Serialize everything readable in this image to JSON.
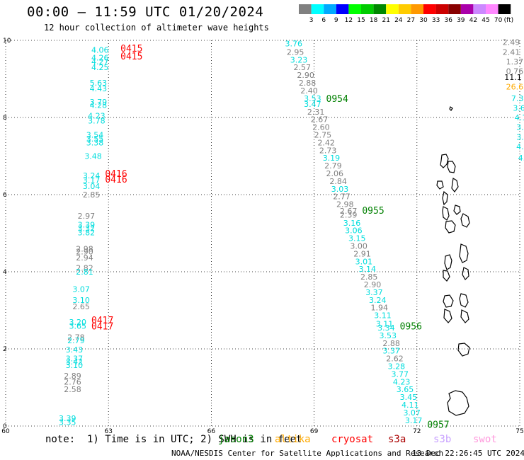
{
  "header": {
    "title": "00:00 – 11:59 UTC 01/20/2024",
    "subtitle": "12 hour collection of altimeter wave heights"
  },
  "colorbar": {
    "unit": "(ft)",
    "colors": [
      "#808080",
      "#00ffff",
      "#00aaff",
      "#0000ff",
      "#00ff00",
      "#00cc00",
      "#008800",
      "#ffff00",
      "#ffcc00",
      "#ff9900",
      "#ff0000",
      "#cc0000",
      "#880000",
      "#aa00aa",
      "#cc88ff",
      "#ff88ff",
      "#000000"
    ],
    "labels": [
      "3",
      "6",
      "9",
      "12",
      "15",
      "18",
      "21",
      "24",
      "27",
      "30",
      "33",
      "36",
      "39",
      "42",
      "45",
      "70"
    ]
  },
  "axes": {
    "x_ticks": [
      "60",
      "63",
      "66",
      "69",
      "72",
      "75"
    ],
    "y_ticks": [
      "0",
      "2",
      "4",
      "6",
      "8",
      "10"
    ],
    "xlim": [
      60,
      75
    ],
    "ylim": [
      0,
      10
    ]
  },
  "track_colors": {
    "jason3": "#008000",
    "saral": "#ff0000",
    "gray": "#808080",
    "cyan": "#00dddd",
    "orange": "#ffaa00",
    "black": "#000000"
  },
  "time_labels": [
    {
      "text": "0415",
      "lon": 63.35,
      "lat": 9.8,
      "color": "#ff0000"
    },
    {
      "text": "0415",
      "lon": 63.35,
      "lat": 9.6,
      "color": "#ff0000"
    },
    {
      "text": "0416",
      "lon": 62.9,
      "lat": 6.55,
      "color": "#ff0000"
    },
    {
      "text": "0416",
      "lon": 62.9,
      "lat": 6.4,
      "color": "#ff0000"
    },
    {
      "text": "0417",
      "lon": 62.5,
      "lat": 2.75,
      "color": "#ff0000"
    },
    {
      "text": "0417",
      "lon": 62.5,
      "lat": 2.6,
      "color": "#ff0000"
    },
    {
      "text": "0954",
      "lon": 69.35,
      "lat": 8.5,
      "color": "#008000"
    },
    {
      "text": "0955",
      "lon": 70.4,
      "lat": 5.6,
      "color": "#008000"
    },
    {
      "text": "0956",
      "lon": 71.5,
      "lat": 2.6,
      "color": "#008000"
    },
    {
      "text": "0957",
      "lon": 72.3,
      "lat": 0.05,
      "color": "#008000"
    }
  ],
  "observations": [
    {
      "text": "4.06",
      "lon": 62.5,
      "lat": 9.75,
      "color": "#00dddd"
    },
    {
      "text": "4.26",
      "lon": 62.5,
      "lat": 9.55,
      "color": "#00dddd"
    },
    {
      "text": "4.27",
      "lon": 62.5,
      "lat": 9.45,
      "color": "#00dddd"
    },
    {
      "text": "4.25",
      "lon": 62.5,
      "lat": 9.3,
      "color": "#00dddd"
    },
    {
      "text": "5.63",
      "lon": 62.45,
      "lat": 8.9,
      "color": "#00dddd"
    },
    {
      "text": "4.43",
      "lon": 62.45,
      "lat": 8.75,
      "color": "#00dddd"
    },
    {
      "text": "3.79",
      "lon": 62.45,
      "lat": 8.4,
      "color": "#00dddd"
    },
    {
      "text": "4.28",
      "lon": 62.45,
      "lat": 8.32,
      "color": "#00dddd"
    },
    {
      "text": "4.23",
      "lon": 62.4,
      "lat": 8.05,
      "color": "#00dddd"
    },
    {
      "text": "3.78",
      "lon": 62.4,
      "lat": 7.92,
      "color": "#00dddd"
    },
    {
      "text": "3.54",
      "lon": 62.35,
      "lat": 7.55,
      "color": "#00dddd"
    },
    {
      "text": "3.55",
      "lon": 62.35,
      "lat": 7.45,
      "color": "#00dddd"
    },
    {
      "text": "3.38",
      "lon": 62.35,
      "lat": 7.35,
      "color": "#00dddd"
    },
    {
      "text": "3.48",
      "lon": 62.3,
      "lat": 7.0,
      "color": "#00dddd"
    },
    {
      "text": "3.24",
      "lon": 62.25,
      "lat": 6.5,
      "color": "#00dddd"
    },
    {
      "text": "3.17",
      "lon": 62.25,
      "lat": 6.38,
      "color": "#00dddd"
    },
    {
      "text": "3.04",
      "lon": 62.25,
      "lat": 6.22,
      "color": "#00dddd"
    },
    {
      "text": "2.85",
      "lon": 62.25,
      "lat": 6.0,
      "color": "#808080"
    },
    {
      "text": "2.97",
      "lon": 62.1,
      "lat": 5.45,
      "color": "#808080"
    },
    {
      "text": "3.39",
      "lon": 62.1,
      "lat": 5.22,
      "color": "#00dddd"
    },
    {
      "text": "3.32",
      "lon": 62.1,
      "lat": 5.13,
      "color": "#00dddd"
    },
    {
      "text": "3.82",
      "lon": 62.1,
      "lat": 5.02,
      "color": "#00dddd"
    },
    {
      "text": "2.98",
      "lon": 62.05,
      "lat": 4.6,
      "color": "#808080"
    },
    {
      "text": "2.90",
      "lon": 62.05,
      "lat": 4.52,
      "color": "#808080"
    },
    {
      "text": "2.94",
      "lon": 62.05,
      "lat": 4.37,
      "color": "#808080"
    },
    {
      "text": "2.82",
      "lon": 62.05,
      "lat": 4.1,
      "color": "#808080"
    },
    {
      "text": "2.81",
      "lon": 62.05,
      "lat": 4.0,
      "color": "#00dddd"
    },
    {
      "text": "3.07",
      "lon": 61.95,
      "lat": 3.55,
      "color": "#00dddd"
    },
    {
      "text": "3.10",
      "lon": 61.95,
      "lat": 3.27,
      "color": "#00dddd"
    },
    {
      "text": "2.65",
      "lon": 61.95,
      "lat": 3.1,
      "color": "#808080"
    },
    {
      "text": "3.20",
      "lon": 61.85,
      "lat": 2.7,
      "color": "#00dddd"
    },
    {
      "text": "3.65",
      "lon": 61.85,
      "lat": 2.6,
      "color": "#00dddd"
    },
    {
      "text": "2.78",
      "lon": 61.8,
      "lat": 2.3,
      "color": "#808080"
    },
    {
      "text": "2.79",
      "lon": 61.8,
      "lat": 2.22,
      "color": "#00dddd"
    },
    {
      "text": "3.43",
      "lon": 61.75,
      "lat": 1.98,
      "color": "#00dddd"
    },
    {
      "text": "3.37",
      "lon": 61.75,
      "lat": 1.75,
      "color": "#00dddd"
    },
    {
      "text": "3.42",
      "lon": 61.75,
      "lat": 1.67,
      "color": "#00dddd"
    },
    {
      "text": "3.10",
      "lon": 61.75,
      "lat": 1.58,
      "color": "#00dddd"
    },
    {
      "text": "2.89",
      "lon": 61.7,
      "lat": 1.3,
      "color": "#808080"
    },
    {
      "text": "2.76",
      "lon": 61.7,
      "lat": 1.15,
      "color": "#808080"
    },
    {
      "text": "2.58",
      "lon": 61.7,
      "lat": 0.95,
      "color": "#808080"
    },
    {
      "text": "3.39",
      "lon": 61.55,
      "lat": 0.2,
      "color": "#00dddd"
    },
    {
      "text": "3.35",
      "lon": 61.55,
      "lat": 0.1,
      "color": "#00dddd"
    },
    {
      "text": "3.76",
      "lon": 68.15,
      "lat": 9.92,
      "color": "#00dddd"
    },
    {
      "text": "2.95",
      "lon": 68.2,
      "lat": 9.7,
      "color": "#808080"
    },
    {
      "text": "3.23",
      "lon": 68.3,
      "lat": 9.5,
      "color": "#00dddd"
    },
    {
      "text": "2.57",
      "lon": 68.4,
      "lat": 9.3,
      "color": "#808080"
    },
    {
      "text": "2.90",
      "lon": 68.5,
      "lat": 9.1,
      "color": "#808080"
    },
    {
      "text": "2.88",
      "lon": 68.55,
      "lat": 8.9,
      "color": "#808080"
    },
    {
      "text": "2.40",
      "lon": 68.6,
      "lat": 8.7,
      "color": "#808080"
    },
    {
      "text": "3.53",
      "lon": 68.7,
      "lat": 8.5,
      "color": "#00dddd"
    },
    {
      "text": "3.47",
      "lon": 68.7,
      "lat": 8.35,
      "color": "#00dddd"
    },
    {
      "text": "2.31",
      "lon": 68.8,
      "lat": 8.15,
      "color": "#808080"
    },
    {
      "text": "2.67",
      "lon": 68.9,
      "lat": 7.95,
      "color": "#808080"
    },
    {
      "text": "2.60",
      "lon": 68.95,
      "lat": 7.75,
      "color": "#808080"
    },
    {
      "text": "2.75",
      "lon": 69.0,
      "lat": 7.55,
      "color": "#808080"
    },
    {
      "text": "2.42",
      "lon": 69.1,
      "lat": 7.35,
      "color": "#808080"
    },
    {
      "text": "2.73",
      "lon": 69.15,
      "lat": 7.15,
      "color": "#808080"
    },
    {
      "text": "3.19",
      "lon": 69.25,
      "lat": 6.95,
      "color": "#00dddd"
    },
    {
      "text": "2.79",
      "lon": 69.3,
      "lat": 6.75,
      "color": "#808080"
    },
    {
      "text": "2.06",
      "lon": 69.35,
      "lat": 6.55,
      "color": "#808080"
    },
    {
      "text": "2.84",
      "lon": 69.45,
      "lat": 6.35,
      "color": "#808080"
    },
    {
      "text": "3.03",
      "lon": 69.5,
      "lat": 6.15,
      "color": "#00dddd"
    },
    {
      "text": "2.77",
      "lon": 69.55,
      "lat": 5.95,
      "color": "#808080"
    },
    {
      "text": "2.98",
      "lon": 69.65,
      "lat": 5.75,
      "color": "#808080"
    },
    {
      "text": "2.67",
      "lon": 69.75,
      "lat": 5.58,
      "color": "#808080"
    },
    {
      "text": "2.39",
      "lon": 69.75,
      "lat": 5.48,
      "color": "#808080"
    },
    {
      "text": "3.16",
      "lon": 69.85,
      "lat": 5.27,
      "color": "#00dddd"
    },
    {
      "text": "3.06",
      "lon": 69.9,
      "lat": 5.07,
      "color": "#00dddd"
    },
    {
      "text": "3.15",
      "lon": 70.0,
      "lat": 4.87,
      "color": "#00dddd"
    },
    {
      "text": "3.00",
      "lon": 70.05,
      "lat": 4.67,
      "color": "#808080"
    },
    {
      "text": "2.91",
      "lon": 70.15,
      "lat": 4.47,
      "color": "#808080"
    },
    {
      "text": "3.01",
      "lon": 70.2,
      "lat": 4.27,
      "color": "#00dddd"
    },
    {
      "text": "3.14",
      "lon": 70.3,
      "lat": 4.07,
      "color": "#00dddd"
    },
    {
      "text": "2.85",
      "lon": 70.35,
      "lat": 3.87,
      "color": "#808080"
    },
    {
      "text": "2.90",
      "lon": 70.45,
      "lat": 3.67,
      "color": "#808080"
    },
    {
      "text": "3.37",
      "lon": 70.5,
      "lat": 3.47,
      "color": "#00dddd"
    },
    {
      "text": "3.24",
      "lon": 70.6,
      "lat": 3.27,
      "color": "#00dddd"
    },
    {
      "text": "1.94",
      "lon": 70.65,
      "lat": 3.07,
      "color": "#808080"
    },
    {
      "text": "3.11",
      "lon": 70.75,
      "lat": 2.87,
      "color": "#00dddd"
    },
    {
      "text": "3.11",
      "lon": 70.8,
      "lat": 2.65,
      "color": "#00dddd"
    },
    {
      "text": "3.34",
      "lon": 70.85,
      "lat": 2.55,
      "color": "#00dddd"
    },
    {
      "text": "3.53",
      "lon": 70.9,
      "lat": 2.35,
      "color": "#00dddd"
    },
    {
      "text": "2.88",
      "lon": 71.0,
      "lat": 2.15,
      "color": "#808080"
    },
    {
      "text": "3.37",
      "lon": 71.0,
      "lat": 1.95,
      "color": "#00dddd"
    },
    {
      "text": "2.62",
      "lon": 71.1,
      "lat": 1.75,
      "color": "#808080"
    },
    {
      "text": "3.28",
      "lon": 71.15,
      "lat": 1.55,
      "color": "#00dddd"
    },
    {
      "text": "3.77",
      "lon": 71.25,
      "lat": 1.35,
      "color": "#00dddd"
    },
    {
      "text": "4.23",
      "lon": 71.3,
      "lat": 1.15,
      "color": "#00dddd"
    },
    {
      "text": "3.65",
      "lon": 71.4,
      "lat": 0.95,
      "color": "#00dddd"
    },
    {
      "text": "3.45",
      "lon": 71.5,
      "lat": 0.75,
      "color": "#00dddd"
    },
    {
      "text": "4.11",
      "lon": 71.55,
      "lat": 0.55,
      "color": "#00dddd"
    },
    {
      "text": "3.07",
      "lon": 71.6,
      "lat": 0.35,
      "color": "#00dddd"
    },
    {
      "text": "3.17",
      "lon": 71.65,
      "lat": 0.15,
      "color": "#00dddd"
    },
    {
      "text": "2.49",
      "lon": 74.5,
      "lat": 9.95,
      "color": "#808080"
    },
    {
      "text": "2.41",
      "lon": 74.5,
      "lat": 9.7,
      "color": "#808080"
    },
    {
      "text": "1.37",
      "lon": 74.6,
      "lat": 9.45,
      "color": "#808080"
    },
    {
      "text": "0.76",
      "lon": 74.6,
      "lat": 9.2,
      "color": "#808080"
    },
    {
      "text": "11.1",
      "lon": 74.55,
      "lat": 9.05,
      "color": "#000000"
    },
    {
      "text": "26.6",
      "lon": 74.6,
      "lat": 8.8,
      "color": "#ffaa00"
    },
    {
      "text": "7.3",
      "lon": 74.75,
      "lat": 8.5,
      "color": "#00dddd"
    },
    {
      "text": "3.6",
      "lon": 74.8,
      "lat": 8.25,
      "color": "#00dddd"
    },
    {
      "text": "4.1",
      "lon": 74.85,
      "lat": 8.0,
      "color": "#00dddd"
    },
    {
      "text": "3.",
      "lon": 74.9,
      "lat": 7.75,
      "color": "#00dddd"
    },
    {
      "text": "3.",
      "lon": 74.9,
      "lat": 7.5,
      "color": "#00dddd"
    },
    {
      "text": "4.",
      "lon": 74.9,
      "lat": 7.25,
      "color": "#00dddd"
    },
    {
      "text": "4.",
      "lon": 74.95,
      "lat": 6.95,
      "color": "#00dddd"
    }
  ],
  "legend": {
    "note": "note:  1) Time is in UTC; 2) SWH is in feet",
    "satellites": [
      {
        "text": "jason3",
        "color": "#008000"
      },
      {
        "text": "altika",
        "color": "#ffaa00"
      },
      {
        "text": "cryosat",
        "color": "#ff0000"
      },
      {
        "text": "s3a",
        "color": "#aa0000"
      },
      {
        "text": "s3b",
        "color": "#c8a0ff"
      },
      {
        "text": "swot",
        "color": "#ff99dd"
      }
    ]
  },
  "footer": {
    "credit": "NOAA/NESDIS Center for Satellite Applications and Research",
    "timestamp": "13 Dec 22:26:45 UTC 2024"
  }
}
